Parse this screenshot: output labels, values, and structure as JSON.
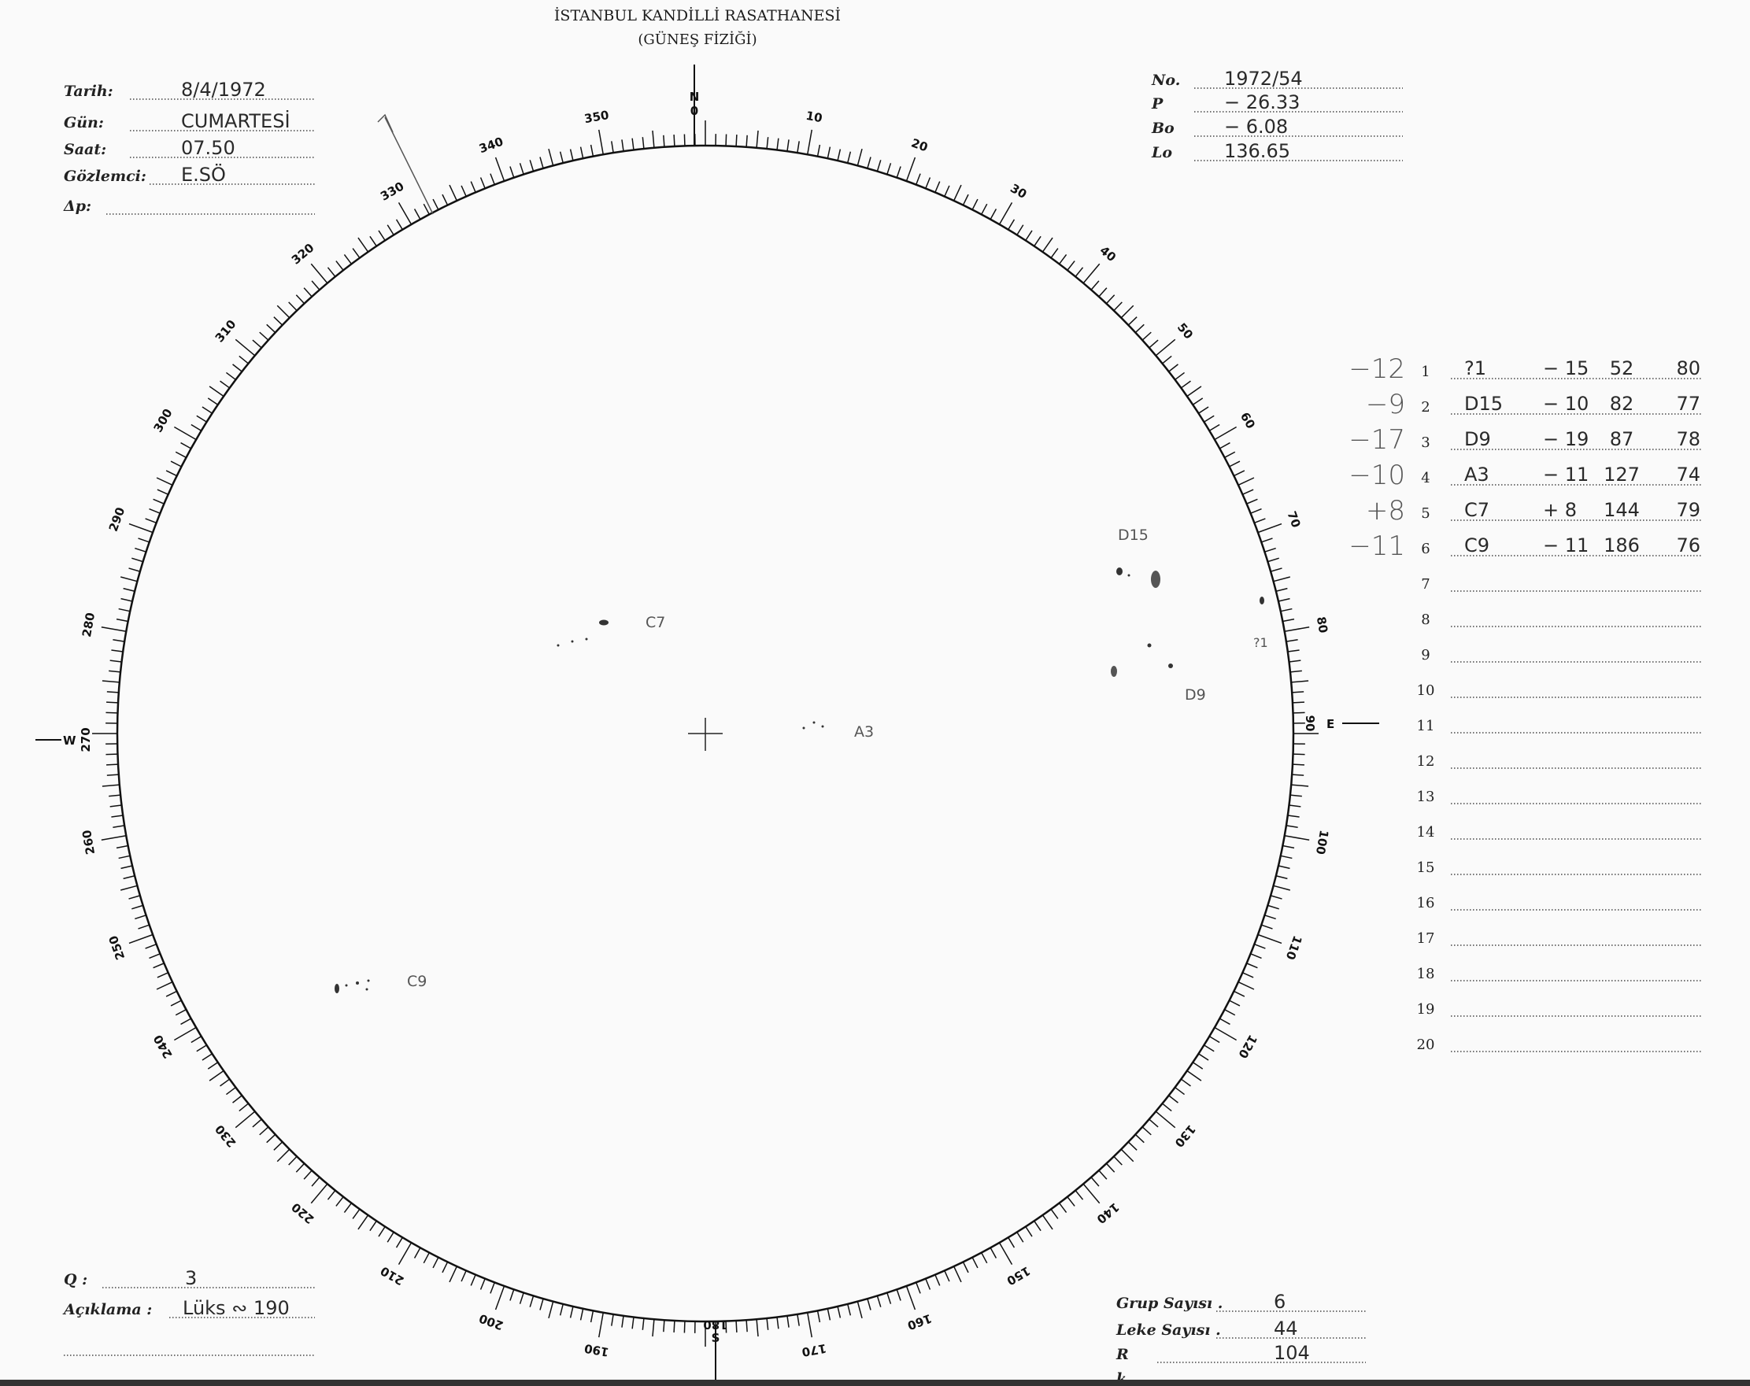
{
  "header": {
    "title": "İSTANBUL KANDİLLİ RASATHANESİ",
    "subtitle": "(GÜNEŞ FİZİĞİ)"
  },
  "observation": [
    {
      "label": "Tarih:",
      "value": "8/4/1972"
    },
    {
      "label": "Gün:",
      "value": "CUMARTESİ"
    },
    {
      "label": "Saat:",
      "value": "07.50"
    },
    {
      "label": "Gözlemci:",
      "value": "E.SÖ"
    },
    {
      "label": "Δp:",
      "value": ""
    }
  ],
  "ephemeris": [
    {
      "label": "No.",
      "value": "1972/54"
    },
    {
      "label": "P",
      "value": "− 26.33"
    },
    {
      "label": "Bo",
      "value": "−  6.08"
    },
    {
      "label": "Lo",
      "value": "136.65"
    }
  ],
  "disk": {
    "north": "N",
    "north_deg": "0",
    "south": "S",
    "south_deg": "180",
    "east": "E",
    "east_deg": "90",
    "west": "W",
    "west_deg": "270"
  },
  "spot_labels": [
    "C7",
    "A3",
    "D15",
    "D9",
    "?1",
    "C9"
  ],
  "groups": [
    {
      "n": "1",
      "note": "−12",
      "name": "?1",
      "lat": "− 15",
      "lon": "52",
      "count": "80"
    },
    {
      "n": "2",
      "note": "−9",
      "name": "D15",
      "lat": "− 10",
      "lon": "82",
      "count": "77"
    },
    {
      "n": "3",
      "note": "−17",
      "name": "D9",
      "lat": "− 19",
      "lon": "87",
      "count": "78"
    },
    {
      "n": "4",
      "note": "−10",
      "name": "A3",
      "lat": "− 11",
      "lon": "127",
      "count": "74"
    },
    {
      "n": "5",
      "note": "+8",
      "name": "C7",
      "lat": "+ 8",
      "lon": "144",
      "count": "79"
    },
    {
      "n": "6",
      "note": "−11",
      "name": "C9",
      "lat": "− 11",
      "lon": "186",
      "count": "76"
    },
    {
      "n": "7"
    },
    {
      "n": "8"
    },
    {
      "n": "9"
    },
    {
      "n": "10"
    },
    {
      "n": "11"
    },
    {
      "n": "12"
    },
    {
      "n": "13"
    },
    {
      "n": "14"
    },
    {
      "n": "15"
    },
    {
      "n": "16"
    },
    {
      "n": "17"
    },
    {
      "n": "18"
    },
    {
      "n": "19"
    },
    {
      "n": "20"
    }
  ],
  "footer_left": [
    {
      "label": "Q :",
      "value": "3"
    },
    {
      "label": "Açıklama :",
      "value": "Lüks ∾ 190"
    }
  ],
  "footer_right": [
    {
      "label": "Grup Sayısı .",
      "value": "6"
    },
    {
      "label": "Leke Sayısı .",
      "value": "44"
    },
    {
      "label": "R",
      "value": "104"
    },
    {
      "label": "k",
      "value": ""
    }
  ]
}
